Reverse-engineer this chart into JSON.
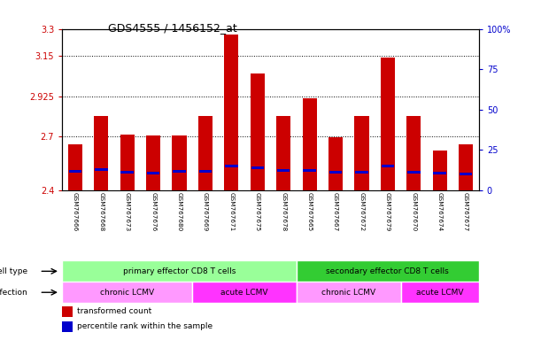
{
  "title": "GDS4555 / 1456152_at",
  "samples": [
    "GSM767666",
    "GSM767668",
    "GSM767673",
    "GSM767676",
    "GSM767680",
    "GSM767669",
    "GSM767671",
    "GSM767675",
    "GSM767678",
    "GSM767665",
    "GSM767667",
    "GSM767672",
    "GSM767679",
    "GSM767670",
    "GSM767674",
    "GSM767677"
  ],
  "bar_tops": [
    2.655,
    2.815,
    2.71,
    2.705,
    2.705,
    2.815,
    3.27,
    3.05,
    2.815,
    2.915,
    2.695,
    2.815,
    3.14,
    2.815,
    2.62,
    2.655
  ],
  "blue_positions": [
    2.505,
    2.515,
    2.5,
    2.495,
    2.505,
    2.505,
    2.535,
    2.525,
    2.51,
    2.51,
    2.5,
    2.5,
    2.535,
    2.5,
    2.495,
    2.49
  ],
  "ymin": 2.4,
  "ymax": 3.3,
  "yticks_left": [
    2.4,
    2.7,
    2.925,
    3.15,
    3.3
  ],
  "yticks_right": [
    0,
    25,
    50,
    75,
    100
  ],
  "yticks_right_labels": [
    "0",
    "25",
    "50",
    "75",
    "100%"
  ],
  "bar_color": "#cc0000",
  "blue_color": "#0000cc",
  "bar_width": 0.55,
  "cell_type_groups": [
    {
      "label": "primary effector CD8 T cells",
      "start": 0,
      "end": 9,
      "color": "#99ff99"
    },
    {
      "label": "secondary effector CD8 T cells",
      "start": 9,
      "end": 16,
      "color": "#33cc33"
    }
  ],
  "infection_groups": [
    {
      "label": "chronic LCMV",
      "start": 0,
      "end": 5,
      "color": "#ff99ff"
    },
    {
      "label": "acute LCMV",
      "start": 5,
      "end": 9,
      "color": "#ff33ff"
    },
    {
      "label": "chronic LCMV",
      "start": 9,
      "end": 13,
      "color": "#ff99ff"
    },
    {
      "label": "acute LCMV",
      "start": 13,
      "end": 16,
      "color": "#ff33ff"
    }
  ],
  "tick_label_color": "#cc0000",
  "right_axis_color": "#0000cc",
  "grid_color": "#000000",
  "bg_color": "#ffffff",
  "label_area_bg": "#cccccc",
  "celltype_row_colors": [
    "#99ff99",
    "#33cc33"
  ],
  "infection_row_colors": [
    "#ff99ff",
    "#ff33ff"
  ]
}
